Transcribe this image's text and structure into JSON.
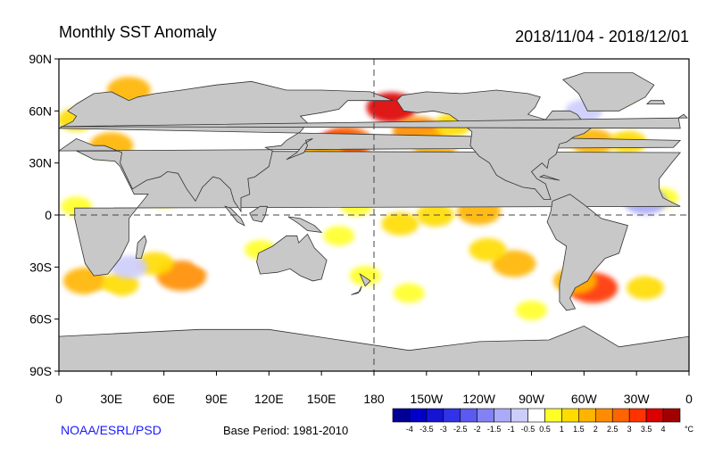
{
  "chart_data": {
    "type": "heatmap",
    "title": "Monthly SST Anomaly",
    "date_range": "2018/11/04 - 2018/12/01",
    "projection": "cylindrical equidistant, centered 180",
    "lon_range": [
      0,
      360
    ],
    "lat_range": [
      -90,
      90
    ],
    "x_ticks": [
      "0",
      "30E",
      "60E",
      "90E",
      "120E",
      "150E",
      "180",
      "150W",
      "120W",
      "90W",
      "60W",
      "30W",
      "0"
    ],
    "y_ticks": [
      "90N",
      "60N",
      "30N",
      "0",
      "30S",
      "60S",
      "90S"
    ],
    "dashed_reference_lines": [
      "equator",
      "180 meridian"
    ],
    "colorbar": {
      "unit": "°C",
      "labels": [
        "-4",
        "-3.5",
        "-3",
        "-2.5",
        "-2",
        "-1.5",
        "-1",
        "-0.5",
        "0.5",
        "1",
        "1.5",
        "2",
        "2.5",
        "3",
        "3.5",
        "4"
      ],
      "colors": [
        "#000096",
        "#0000c8",
        "#1414d2",
        "#3232e6",
        "#5a5af0",
        "#8282f5",
        "#aaaaf8",
        "#cdcdfc",
        "#ffffff",
        "#ffff28",
        "#ffdc00",
        "#ffb400",
        "#ff8c00",
        "#ff6400",
        "#ff3200",
        "#dc0000",
        "#a00000"
      ]
    },
    "anomaly_regions": [
      {
        "lon": 160,
        "lat": 40,
        "value": 3.5
      },
      {
        "lon": 165,
        "lat": 42,
        "value": 2.5
      },
      {
        "lon": 150,
        "lat": 35,
        "value": 1.5
      },
      {
        "lon": 190,
        "lat": 62,
        "value": 3.5
      },
      {
        "lon": 205,
        "lat": 48,
        "value": 2.0
      },
      {
        "lon": 215,
        "lat": 40,
        "value": 1.5
      },
      {
        "lon": 225,
        "lat": 52,
        "value": 1.0
      },
      {
        "lon": 200,
        "lat": 28,
        "value": 1.0
      },
      {
        "lon": 240,
        "lat": 2,
        "value": 1.5
      },
      {
        "lon": 215,
        "lat": 0,
        "value": 1.0
      },
      {
        "lon": 195,
        "lat": -5,
        "value": 1.0
      },
      {
        "lon": 170,
        "lat": 5,
        "value": 0.5
      },
      {
        "lon": 160,
        "lat": -12,
        "value": 0.5
      },
      {
        "lon": 260,
        "lat": -28,
        "value": 1.5
      },
      {
        "lon": 245,
        "lat": -20,
        "value": 1.0
      },
      {
        "lon": 305,
        "lat": -42,
        "value": 3.0
      },
      {
        "lon": 295,
        "lat": -38,
        "value": 1.5
      },
      {
        "lon": 70,
        "lat": -35,
        "value": 2.0
      },
      {
        "lon": 55,
        "lat": -28,
        "value": 1.0
      },
      {
        "lon": 15,
        "lat": -38,
        "value": 1.5
      },
      {
        "lon": 35,
        "lat": -40,
        "value": 1.0
      },
      {
        "lon": 30,
        "lat": 40,
        "value": 1.5
      },
      {
        "lon": 10,
        "lat": 55,
        "value": 1.0
      },
      {
        "lon": 40,
        "lat": 72,
        "value": 1.5
      },
      {
        "lon": 305,
        "lat": 42,
        "value": 1.5
      },
      {
        "lon": 325,
        "lat": 42,
        "value": 1.0
      },
      {
        "lon": 290,
        "lat": 30,
        "value": 0.5
      },
      {
        "lon": 345,
        "lat": 10,
        "value": 0.5
      },
      {
        "lon": 335,
        "lat": -42,
        "value": 1.0
      },
      {
        "lon": 10,
        "lat": 5,
        "value": 0.5
      },
      {
        "lon": 60,
        "lat": 10,
        "value": 0.5
      },
      {
        "lon": 115,
        "lat": -20,
        "value": 0.5
      },
      {
        "lon": 200,
        "lat": -45,
        "value": 0.5
      },
      {
        "lon": 175,
        "lat": -35,
        "value": 0.5
      },
      {
        "lon": 270,
        "lat": -55,
        "value": 0.5
      },
      {
        "lon": 320,
        "lat": 70,
        "value": 1.0
      },
      {
        "lon": 85,
        "lat": -25,
        "value": -0.5
      },
      {
        "lon": 100,
        "lat": -35,
        "value": -0.5
      },
      {
        "lon": 40,
        "lat": -30,
        "value": -1.0
      },
      {
        "lon": 300,
        "lat": 60,
        "value": -1.0
      },
      {
        "lon": 320,
        "lat": 55,
        "value": -0.5
      },
      {
        "lon": 350,
        "lat": 30,
        "value": -0.5
      },
      {
        "lon": 335,
        "lat": 8,
        "value": -1.5
      },
      {
        "lon": 270,
        "lat": 15,
        "value": -0.5
      },
      {
        "lon": 145,
        "lat": -40,
        "value": -0.5
      },
      {
        "lon": 240,
        "lat": -40,
        "value": -0.5
      },
      {
        "lon": 345,
        "lat": -30,
        "value": -0.5
      },
      {
        "lon": 25,
        "lat": -50,
        "value": -0.5
      },
      {
        "lon": 120,
        "lat": -50,
        "value": -0.5
      },
      {
        "lon": 235,
        "lat": -50,
        "value": -0.5
      }
    ]
  },
  "footer": {
    "source": "NOAA/ESRL/PSD",
    "base_period": "Base Period: 1981-2010"
  }
}
